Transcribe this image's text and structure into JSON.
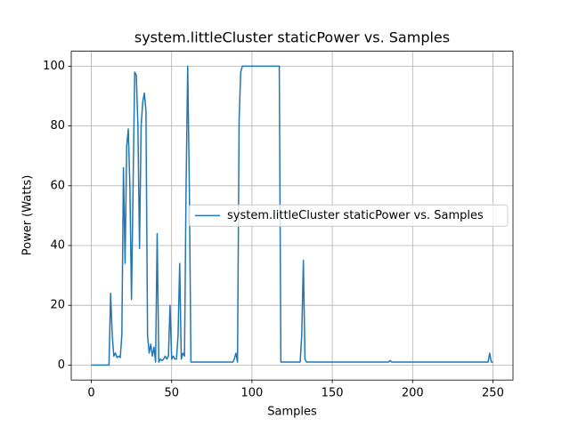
{
  "chart_data": {
    "type": "line",
    "title": "system.littleCluster staticPower vs. Samples",
    "xlabel": "Samples",
    "ylabel": "Power (Watts)",
    "x": [
      0,
      11,
      12,
      13,
      14,
      15,
      16,
      17,
      18,
      19,
      20,
      21,
      22,
      23,
      24,
      25,
      26,
      27,
      28,
      29,
      30,
      31,
      32,
      33,
      34,
      35,
      36,
      37,
      38,
      39,
      40,
      41,
      42,
      43,
      44,
      45,
      46,
      47,
      48,
      49,
      50,
      51,
      52,
      53,
      54,
      55,
      56,
      57,
      58,
      59,
      60,
      61,
      62,
      88,
      89,
      90,
      91,
      92,
      93,
      94,
      117,
      118,
      130,
      131,
      132,
      133,
      134,
      185,
      186,
      187,
      247,
      248,
      249,
      250
    ],
    "series": [
      {
        "name": "system.littleCluster staticPower vs. Samples",
        "color": "#1f77b4",
        "values": [
          0,
          0,
          24,
          10,
          3,
          4,
          2.5,
          3,
          2.5,
          10,
          66,
          34,
          73,
          79,
          60,
          22,
          60,
          98,
          97,
          80,
          39,
          80,
          88,
          91,
          85,
          10,
          4,
          7,
          3,
          6,
          1,
          44,
          1,
          2,
          1.5,
          2,
          3,
          2,
          3,
          20,
          2,
          3,
          2,
          2,
          10,
          34,
          2,
          4,
          3,
          60,
          100,
          60,
          1,
          1,
          2,
          4,
          1,
          82,
          98,
          100,
          100,
          1,
          1,
          10,
          35,
          2,
          1,
          1,
          1.5,
          1,
          1,
          4,
          1,
          1
        ]
      }
    ],
    "xlim": [
      -12.5,
      262.5
    ],
    "ylim": [
      -5,
      105
    ],
    "xticks": [
      0,
      50,
      100,
      150,
      200,
      250
    ],
    "yticks": [
      0,
      20,
      40,
      60,
      80,
      100
    ],
    "grid": true,
    "legend": "center right"
  }
}
